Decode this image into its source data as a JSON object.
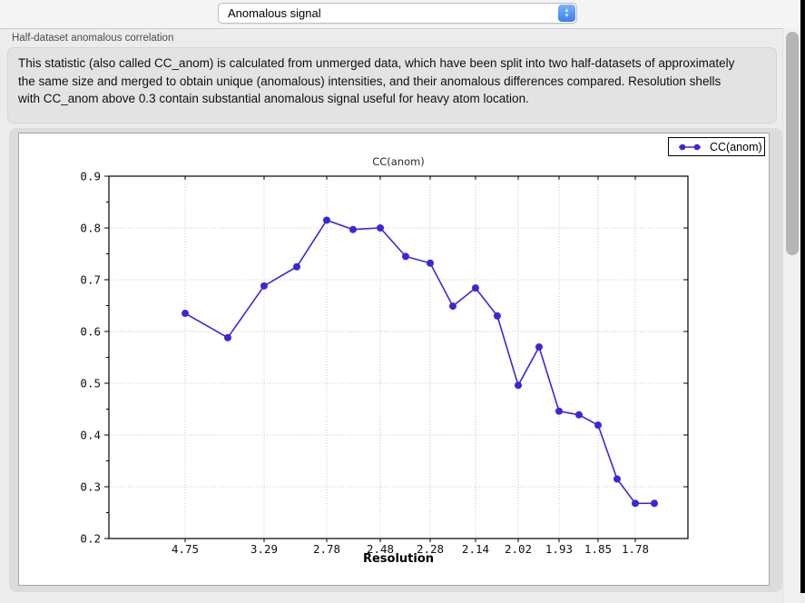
{
  "header": {
    "dataset_selector": {
      "value": "Anomalous signal"
    }
  },
  "section": {
    "label": "Half-dataset anomalous correlation",
    "description": "This statistic (also called CC_anom) is calculated from unmerged data, which have been split into two half-datasets of approximately the same size and merged to obtain unique (anomalous) intensities, and their anomalous differences compared.  Resolution shells with CC_anom above 0.3 contain substantial anomalous signal useful for heavy atom location."
  },
  "chart_data": {
    "type": "line",
    "title": "CC(anom)",
    "xlabel": "Resolution",
    "ylabel": "",
    "ylim": [
      0.2,
      0.9
    ],
    "yticks": [
      0.2,
      0.3,
      0.4,
      0.5,
      0.6,
      0.7,
      0.8,
      0.9
    ],
    "grid": true,
    "legend_position": "top-right",
    "x_scale": "inverse d-squared (resolution in Angstrom, high resolution to the right)",
    "x_tick_labels": [
      "4.75",
      "3.29",
      "2.78",
      "2.48",
      "2.28",
      "2.14",
      "2.02",
      "1.93",
      "1.85",
      "1.78"
    ],
    "x_tick_point_indices": [
      0,
      2,
      4,
      6,
      8,
      10,
      12,
      14,
      16,
      18
    ],
    "series": [
      {
        "name": "CC(anom)",
        "color": "#3a28d8",
        "x_frac": [
          0.1317,
          0.2053,
          0.268,
          0.3245,
          0.3762,
          0.4216,
          0.4687,
          0.5125,
          0.5549,
          0.594,
          0.6332,
          0.6708,
          0.7069,
          0.7429,
          0.7774,
          0.8119,
          0.8448,
          0.8777,
          0.9091,
          0.942
        ],
        "values": [
          0.635,
          0.588,
          0.688,
          0.725,
          0.815,
          0.797,
          0.8,
          0.745,
          0.732,
          0.649,
          0.684,
          0.63,
          0.496,
          0.57,
          0.446,
          0.439,
          0.419,
          0.315,
          0.268,
          0.268
        ]
      }
    ]
  },
  "colors": {
    "accent": "#3a28d8",
    "selector_blue": "#3a7df0"
  }
}
